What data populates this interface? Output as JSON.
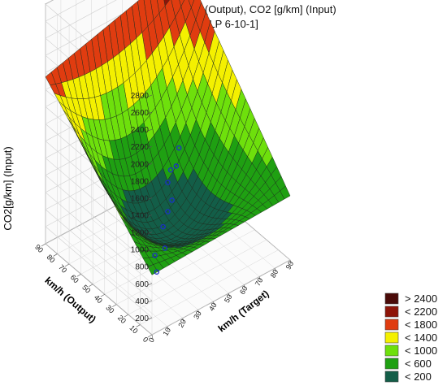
{
  "chart_data": {
    "type": "surface3d",
    "title": "km/h (Target), km/h (Output), CO2 [g/km] (Input)",
    "subtitle": "[5.MLP 6-10-1]",
    "x_axis": {
      "label": "km/h (Target)",
      "range": [
        0,
        90
      ],
      "ticks": [
        "0",
        "10",
        "20",
        "30",
        "40",
        "50",
        "60",
        "70",
        "80",
        "90"
      ]
    },
    "y_axis": {
      "label": "km/h (Output)",
      "range": [
        0,
        90
      ],
      "ticks": [
        "0",
        "10",
        "20",
        "30",
        "40",
        "50",
        "60",
        "70",
        "80",
        "90"
      ]
    },
    "z_axis": {
      "label": "CO2[g/km] (Input)",
      "range": [
        0,
        2800
      ],
      "ticks": [
        "200",
        "400",
        "600",
        "800",
        "1000",
        "1200",
        "1400",
        "1600",
        "1800",
        "2000",
        "2200",
        "2400",
        "2600",
        "2800"
      ]
    },
    "surface_corners": [
      {
        "target": 0,
        "output": 0,
        "co2": 700
      },
      {
        "target": 0,
        "output": 90,
        "co2": 1950
      },
      {
        "target": 90,
        "output": 0,
        "co2": 750
      },
      {
        "target": 90,
        "output": 90,
        "co2": 2400
      }
    ],
    "grid": true,
    "legend": {
      "placement": "bottom-right",
      "entries": [
        {
          "label": "> 2400",
          "color": "#4a0a08"
        },
        {
          "label": "< 2200",
          "color": "#8e1408"
        },
        {
          "label": "< 1800",
          "color": "#e03c10"
        },
        {
          "label": "< 1400",
          "color": "#f4f000"
        },
        {
          "label": "< 1000",
          "color": "#6ee00c"
        },
        {
          "label": "< 600",
          "color": "#1fa012"
        },
        {
          "label": "< 200",
          "color": "#135e48"
        }
      ]
    },
    "points": [
      {
        "target": 20,
        "output": 22,
        "co2": 280
      },
      {
        "target": 25,
        "output": 30,
        "co2": 330
      },
      {
        "target": 30,
        "output": 28,
        "co2": 390
      },
      {
        "target": 38,
        "output": 40,
        "co2": 420
      },
      {
        "target": 45,
        "output": 45,
        "co2": 470
      },
      {
        "target": 50,
        "output": 48,
        "co2": 520
      },
      {
        "target": 55,
        "output": 58,
        "co2": 560
      },
      {
        "target": 60,
        "output": 62,
        "co2": 610
      },
      {
        "target": 62,
        "output": 60,
        "co2": 660
      },
      {
        "target": 70,
        "output": 68,
        "co2": 700
      }
    ]
  }
}
